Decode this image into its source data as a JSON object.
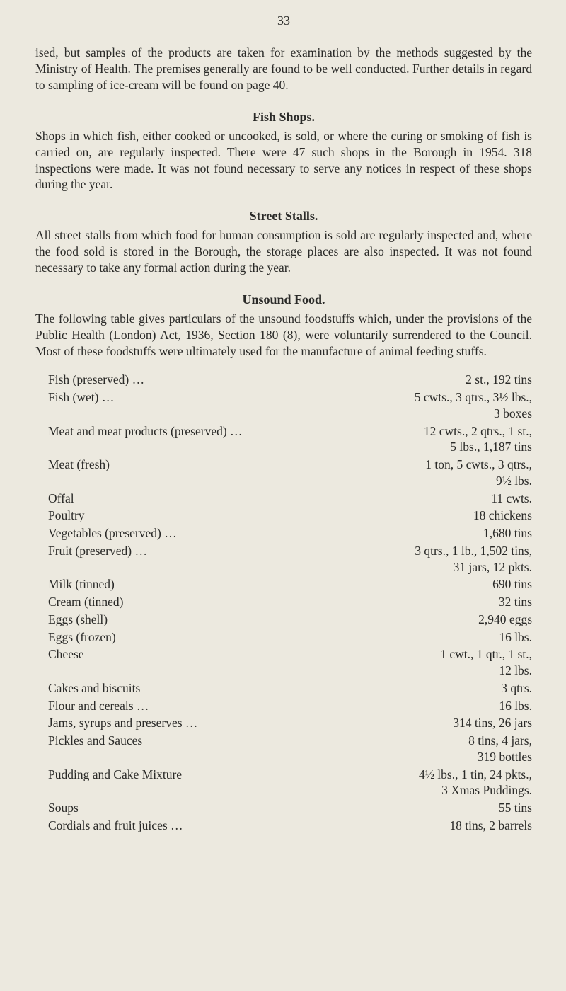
{
  "pageNumber": "33",
  "paragraphs": {
    "p1": "ised, but samples of the products are taken for examination by the methods suggested by the Ministry of Health. The premises generally are found to be well conducted. Further details in regard to sampling of ice-cream will be found on page 40.",
    "fishHeading": "Fish Shops.",
    "p2": "Shops in which fish, either cooked or uncooked, is sold, or where the curing or smoking of fish is carried on, are regularly inspected. There were 47 such shops in the Borough in 1954. 318 inspections were made. It was not found necessary to serve any notices in respect of these shops during the year.",
    "stallsHeading": "Street Stalls.",
    "p3": "All street stalls from which food for human consumption is sold are regularly inspected and, where the food sold is stored in the Borough, the storage places are also inspected. It was not found necessary to take any formal action during the year.",
    "unsoundHeading": "Unsound Food.",
    "p4": "The following table gives particulars of the unsound foodstuffs which, under the provisions of the Public Health (London) Act, 1936, Section 180 (8), were voluntarily surrendered to the Council. Most of these foodstuffs were ultimately used for the manufacture of animal feeding stuffs."
  },
  "foods": [
    {
      "label": "Fish (preserved) …",
      "value": "2 st., 192 tins"
    },
    {
      "label": "Fish (wet) …",
      "value": "5 cwts., 3 qtrs., 3½ lbs.,\n3 boxes"
    },
    {
      "label": "Meat and meat products (preserved)  …",
      "value": "12 cwts., 2 qtrs., 1 st.,\n5 lbs., 1,187 tins"
    },
    {
      "label": "Meat (fresh)",
      "value": "1 ton, 5 cwts., 3 qtrs.,\n9½ lbs."
    },
    {
      "label": "Offal",
      "value": "11 cwts."
    },
    {
      "label": "Poultry",
      "value": "18 chickens"
    },
    {
      "label": "Vegetables (preserved)  …",
      "value": "1,680 tins"
    },
    {
      "label": "Fruit (preserved) …",
      "value": "3 qtrs., 1 lb., 1,502 tins,\n31 jars, 12 pkts."
    },
    {
      "label": "Milk (tinned)",
      "value": "690 tins"
    },
    {
      "label": "Cream (tinned)",
      "value": "32 tins"
    },
    {
      "label": "Eggs (shell)",
      "value": "2,940 eggs"
    },
    {
      "label": "Eggs (frozen)",
      "value": "16 lbs."
    },
    {
      "label": "Cheese",
      "value": "1 cwt., 1 qtr., 1 st.,\n12 lbs."
    },
    {
      "label": "Cakes and biscuits",
      "value": "3 qtrs."
    },
    {
      "label": "Flour and cereals …",
      "value": "16 lbs."
    },
    {
      "label": "Jams, syrups and preserves  …",
      "value": "314 tins, 26 jars"
    },
    {
      "label": "Pickles and Sauces",
      "value": "8 tins, 4 jars,\n319 bottles"
    },
    {
      "label": "Pudding and Cake Mixture",
      "value": "4½ lbs., 1 tin, 24 pkts.,\n3 Xmas Puddings."
    },
    {
      "label": "Soups",
      "value": "55 tins"
    },
    {
      "label": "Cordials and fruit juices …",
      "value": "18 tins, 2 barrels"
    }
  ]
}
